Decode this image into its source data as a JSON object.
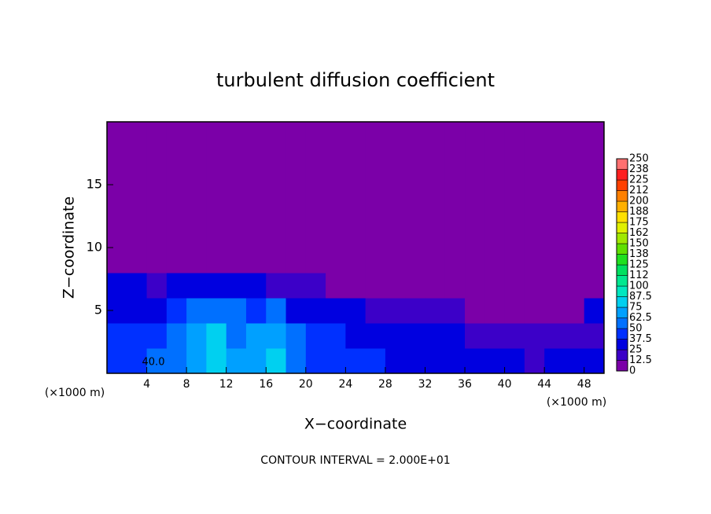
{
  "chart_data": {
    "type": "heatmap",
    "title": "turbulent diffusion coefficient",
    "xlabel": "X−coordinate",
    "ylabel": "Z−coordinate",
    "xunit": "(×1000 m)",
    "xunit2": "(×1000 m)",
    "footnote": "CONTOUR INTERVAL = 2.000E+01",
    "contour_label": "40.0",
    "xlim": [
      0,
      50
    ],
    "ylim": [
      0,
      20
    ],
    "xticks": [
      4,
      8,
      12,
      16,
      20,
      24,
      28,
      32,
      36,
      40,
      44,
      48
    ],
    "yticks": [
      5,
      10,
      15
    ],
    "xbins": [
      0,
      2,
      4,
      6,
      8,
      10,
      12,
      14,
      16,
      18,
      20,
      22,
      24,
      26,
      28,
      30,
      32,
      34,
      36,
      38,
      40,
      42,
      44,
      46,
      48,
      50
    ],
    "ybins": [
      0,
      2,
      4,
      6,
      8,
      10,
      12,
      14,
      16,
      18,
      20
    ],
    "z": [
      [
        45,
        45,
        50,
        55,
        70,
        75,
        65,
        70,
        75,
        55,
        45,
        45,
        40,
        40,
        35,
        35,
        35,
        30,
        30,
        30,
        25,
        20,
        25,
        30,
        35
      ],
      [
        40,
        40,
        45,
        50,
        65,
        75,
        60,
        65,
        70,
        50,
        40,
        40,
        35,
        30,
        30,
        30,
        25,
        25,
        20,
        20,
        15,
        15,
        15,
        15,
        20
      ],
      [
        35,
        35,
        30,
        40,
        55,
        60,
        50,
        40,
        50,
        30,
        30,
        25,
        25,
        20,
        20,
        15,
        15,
        15,
        10,
        10,
        10,
        5,
        5,
        5,
        25
      ],
      [
        25,
        25,
        20,
        25,
        35,
        35,
        30,
        25,
        20,
        20,
        15,
        10,
        10,
        5,
        5,
        5,
        0,
        0,
        0,
        0,
        0,
        0,
        0,
        0,
        10
      ],
      [
        0,
        0,
        0,
        5,
        10,
        10,
        5,
        5,
        0,
        0,
        0,
        0,
        0,
        0,
        0,
        0,
        0,
        0,
        0,
        0,
        0,
        0,
        0,
        0,
        0
      ],
      [
        0,
        0,
        0,
        0,
        0,
        0,
        0,
        0,
        0,
        0,
        0,
        0,
        0,
        0,
        0,
        0,
        0,
        0,
        0,
        0,
        0,
        0,
        0,
        0,
        0
      ],
      [
        0,
        0,
        0,
        0,
        0,
        0,
        0,
        0,
        0,
        0,
        0,
        0,
        0,
        0,
        0,
        0,
        0,
        0,
        0,
        0,
        0,
        0,
        0,
        0,
        0
      ],
      [
        0,
        0,
        0,
        0,
        0,
        0,
        0,
        0,
        0,
        0,
        0,
        0,
        0,
        0,
        0,
        0,
        0,
        0,
        0,
        0,
        0,
        0,
        0,
        0,
        0
      ],
      [
        0,
        0,
        0,
        0,
        0,
        0,
        0,
        0,
        0,
        0,
        0,
        0,
        0,
        0,
        0,
        0,
        0,
        0,
        0,
        0,
        0,
        0,
        0,
        0,
        0
      ],
      [
        0,
        0,
        0,
        0,
        0,
        0,
        0,
        0,
        0,
        0,
        0,
        0,
        0,
        0,
        0,
        0,
        0,
        0,
        0,
        0,
        0,
        0,
        0,
        0,
        0
      ]
    ],
    "levels": [
      0,
      12.5,
      25,
      37.5,
      50,
      62.5,
      75,
      87.5,
      100,
      {
        "value": 112.5,
        "label": "112"
      },
      125,
      {
        "value": 137.5,
        "label": "138"
      },
      150,
      {
        "value": 162.5,
        "label": "162"
      },
      175,
      {
        "value": 187.5,
        "label": "188"
      },
      200,
      {
        "value": 212.5,
        "label": "212"
      },
      225,
      {
        "value": 237.5,
        "label": "238"
      },
      250
    ],
    "colors": [
      "#7b00a8",
      "#3c00c8",
      "#0000e0",
      "#0030ff",
      "#0070ff",
      "#00a0ff",
      "#00d0f0",
      "#00e8c0",
      "#00e890",
      "#00e060",
      "#20e020",
      "#60e000",
      "#a0e800",
      "#e0f000",
      "#ffe000",
      "#ffb000",
      "#ff8000",
      "#ff4000",
      "#ff2020",
      "#ff7070"
    ]
  }
}
